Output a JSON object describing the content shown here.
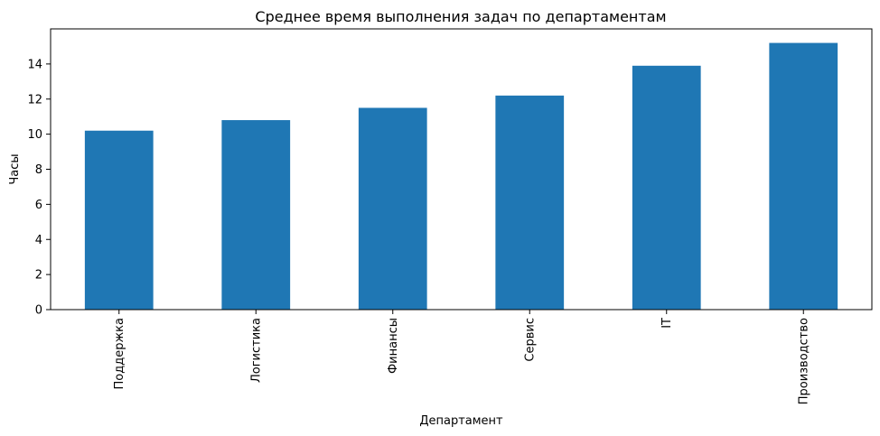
{
  "chart_data": {
    "type": "bar",
    "title": "Среднее время выполнения задач по департаментам",
    "xlabel": "Департамент",
    "ylabel": "Часы",
    "categories": [
      "Поддержка",
      "Логистика",
      "Финансы",
      "Сервис",
      "IT",
      "Производство"
    ],
    "values": [
      10.2,
      10.8,
      11.5,
      12.2,
      13.9,
      15.2
    ],
    "ylim": [
      0,
      16
    ],
    "yticks": [
      0,
      2,
      4,
      6,
      8,
      10,
      12,
      14
    ],
    "ytick_labels": [
      "0",
      "2",
      "4",
      "6",
      "8",
      "10",
      "12",
      "14"
    ],
    "colors": {
      "bar": "#1f77b4"
    },
    "grid": false,
    "legend": "none"
  }
}
